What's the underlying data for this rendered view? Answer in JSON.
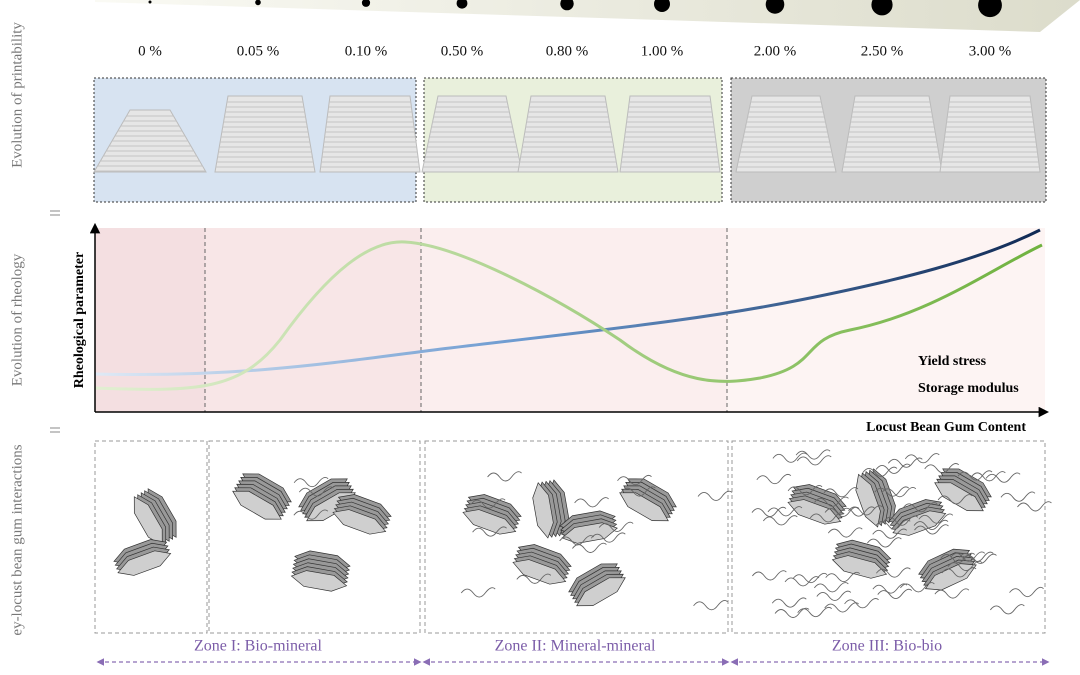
{
  "side_labels": {
    "printability": "Evolution of printability",
    "rheology": "Evolution of rheology",
    "interactions": "ey-locust bean gum interactions"
  },
  "concentrations": [
    "0 %",
    "0.05 %",
    "0.10 %",
    "0.50 %",
    "0.80 %",
    "1.00 %",
    "2.00 %",
    "2.50 %",
    "3.00 %"
  ],
  "rheology": {
    "y_axis_label": "Rheological parameter",
    "x_axis_label": "Locust Bean Gum Content",
    "legend": [
      "Yield stress",
      "Storage modulus"
    ]
  },
  "zones": [
    "Zone I: Bio-mineral",
    "Zone II: Mineral-mineral",
    "Zone III: Bio-bio"
  ]
}
